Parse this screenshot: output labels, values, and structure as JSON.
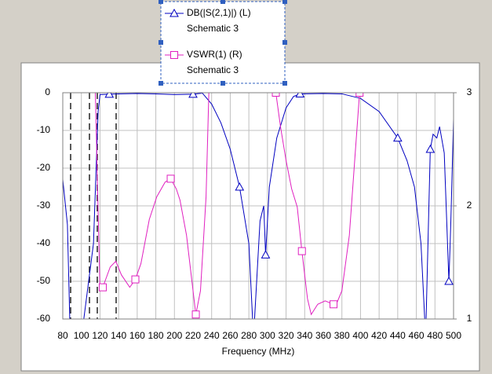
{
  "chart_data": {
    "type": "line",
    "xlabel": "Frequency (MHz)",
    "xlim": [
      80,
      500
    ],
    "xticks": [
      80,
      100,
      120,
      140,
      160,
      180,
      200,
      220,
      240,
      260,
      280,
      300,
      320,
      340,
      360,
      380,
      400,
      420,
      440,
      460,
      480,
      500
    ],
    "ylim": [
      -60,
      0
    ],
    "yticks": [
      0,
      -10,
      -20,
      -30,
      -40,
      -50,
      -60
    ],
    "y2lim": [
      1,
      3
    ],
    "y2ticks": [
      1,
      2,
      3
    ],
    "grid": true,
    "series": [
      {
        "name": "DB(|S(2,1)|) (L)",
        "source": "Schematic 3",
        "color": "#0000c0",
        "marker": "triangle",
        "x": [
          80,
          85,
          88,
          100,
          113,
          118,
          120,
          130,
          140,
          160,
          180,
          200,
          220,
          230,
          240,
          250,
          260,
          270,
          280,
          285,
          292,
          296,
          298,
          302,
          310,
          320,
          328,
          335,
          360,
          380,
          400,
          420,
          440,
          450,
          458,
          465,
          470,
          475,
          478,
          482,
          485,
          490,
          495,
          497,
          500
        ],
        "values": [
          -23,
          -35,
          -65,
          -65,
          -40,
          -5,
          -0.5,
          -0.4,
          -0.3,
          -0.2,
          -0.3,
          -0.5,
          -0.4,
          -0.1,
          -3,
          -8,
          -15,
          -25,
          -40,
          -65,
          -34,
          -30,
          -43,
          -25,
          -12,
          -4,
          -1,
          -0.3,
          -0.2,
          -0.3,
          -1.5,
          -5,
          -12,
          -18,
          -25,
          -40,
          -65,
          -15,
          -11,
          -12,
          -9,
          -16,
          -50,
          -35,
          -7
        ]
      },
      {
        "name": "VSWR(1) (R)",
        "source": "Schematic 3",
        "color": "#e020c0",
        "marker": "square",
        "axis": "y2",
        "x": [
          115,
          120,
          123,
          131,
          137,
          143,
          152,
          158,
          164,
          173,
          181,
          190,
          196,
          202,
          206,
          213,
          219,
          223,
          228,
          234,
          237,
          270,
          309,
          314,
          320,
          326,
          332,
          337,
          343,
          347,
          354,
          362,
          371,
          375,
          380,
          388,
          394,
          399
        ],
        "values": [
          3,
          1.25,
          1.28,
          1.46,
          1.51,
          1.39,
          1.28,
          1.35,
          1.49,
          1.88,
          2.08,
          2.21,
          2.24,
          2.15,
          2.05,
          1.74,
          1.32,
          1.04,
          1.25,
          2.08,
          3,
          null,
          3,
          2.7,
          2.4,
          2.15,
          1.99,
          1.6,
          1.18,
          1.04,
          1.13,
          1.16,
          1.13,
          1.15,
          1.25,
          1.74,
          2.43,
          3
        ]
      }
    ]
  }
}
